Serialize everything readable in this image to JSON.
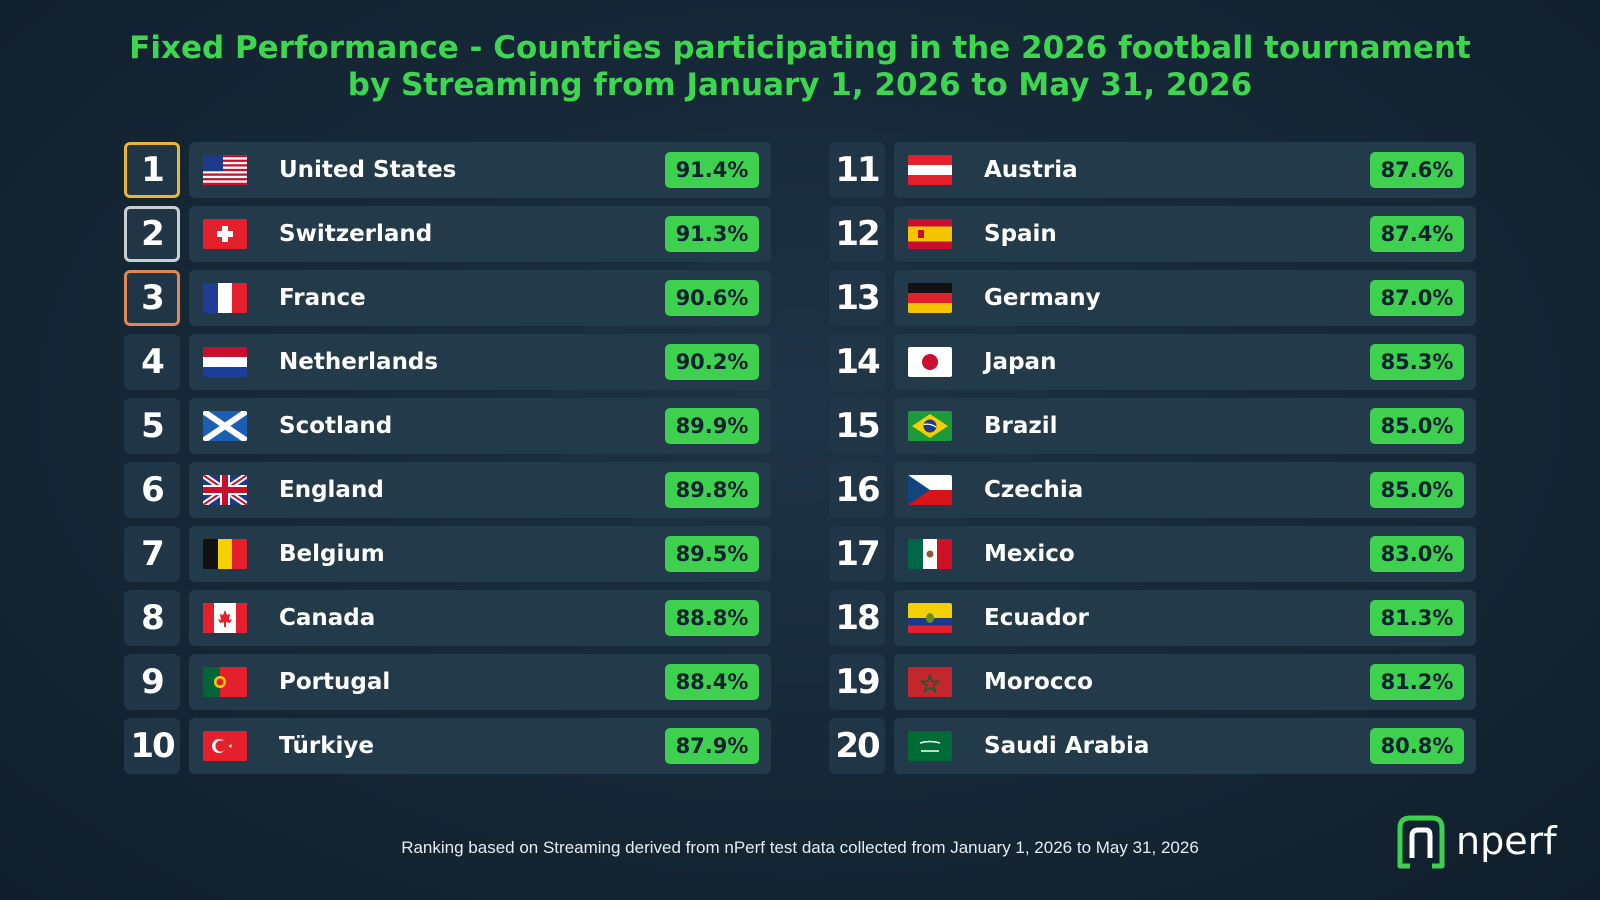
{
  "title_line1": "Fixed Performance - Countries participating in the 2026 football tournament",
  "title_line2": "by Streaming from January 1, 2026 to May 31, 2026",
  "footer": "Ranking based on Streaming derived from nPerf test data collected from January 1, 2026 to May 31, 2026",
  "logo_text": "nperf",
  "colors": {
    "accent": "#3ed14f",
    "gold": "#e8b73a",
    "silver": "#c9ced3",
    "bronze": "#e0875a"
  },
  "chart_data": {
    "type": "table",
    "columns": [
      "rank",
      "country",
      "score"
    ],
    "rows": [
      {
        "rank": "1",
        "country": "United States",
        "score": "91.4%",
        "value": 91.4,
        "flag": "flag-us-icon"
      },
      {
        "rank": "2",
        "country": "Switzerland",
        "score": "91.3%",
        "value": 91.3,
        "flag": "flag-switzerland-icon"
      },
      {
        "rank": "3",
        "country": "France",
        "score": "90.6%",
        "value": 90.6,
        "flag": "flag-france-icon"
      },
      {
        "rank": "4",
        "country": "Netherlands",
        "score": "90.2%",
        "value": 90.2,
        "flag": "flag-netherlands-icon"
      },
      {
        "rank": "5",
        "country": "Scotland",
        "score": "89.9%",
        "value": 89.9,
        "flag": "flag-scotland-icon"
      },
      {
        "rank": "6",
        "country": "England",
        "score": "89.8%",
        "value": 89.8,
        "flag": "flag-uk-icon"
      },
      {
        "rank": "7",
        "country": "Belgium",
        "score": "89.5%",
        "value": 89.5,
        "flag": "flag-belgium-icon"
      },
      {
        "rank": "8",
        "country": "Canada",
        "score": "88.8%",
        "value": 88.8,
        "flag": "flag-canada-icon"
      },
      {
        "rank": "9",
        "country": "Portugal",
        "score": "88.4%",
        "value": 88.4,
        "flag": "flag-portugal-icon"
      },
      {
        "rank": "10",
        "country": "Türkiye",
        "score": "87.9%",
        "value": 87.9,
        "flag": "flag-turkiye-icon"
      },
      {
        "rank": "11",
        "country": "Austria",
        "score": "87.6%",
        "value": 87.6,
        "flag": "flag-austria-icon"
      },
      {
        "rank": "12",
        "country": "Spain",
        "score": "87.4%",
        "value": 87.4,
        "flag": "flag-spain-icon"
      },
      {
        "rank": "13",
        "country": "Germany",
        "score": "87.0%",
        "value": 87.0,
        "flag": "flag-germany-icon"
      },
      {
        "rank": "14",
        "country": "Japan",
        "score": "85.3%",
        "value": 85.3,
        "flag": "flag-japan-icon"
      },
      {
        "rank": "15",
        "country": "Brazil",
        "score": "85.0%",
        "value": 85.0,
        "flag": "flag-brazil-icon"
      },
      {
        "rank": "16",
        "country": "Czechia",
        "score": "85.0%",
        "value": 85.0,
        "flag": "flag-czechia-icon"
      },
      {
        "rank": "17",
        "country": "Mexico",
        "score": "83.0%",
        "value": 83.0,
        "flag": "flag-mexico-icon"
      },
      {
        "rank": "18",
        "country": "Ecuador",
        "score": "81.3%",
        "value": 81.3,
        "flag": "flag-ecuador-icon"
      },
      {
        "rank": "19",
        "country": "Morocco",
        "score": "81.2%",
        "value": 81.2,
        "flag": "flag-morocco-icon"
      },
      {
        "rank": "20",
        "country": "Saudi Arabia",
        "score": "80.8%",
        "value": 80.8,
        "flag": "flag-saudi-arabia-icon"
      }
    ]
  }
}
